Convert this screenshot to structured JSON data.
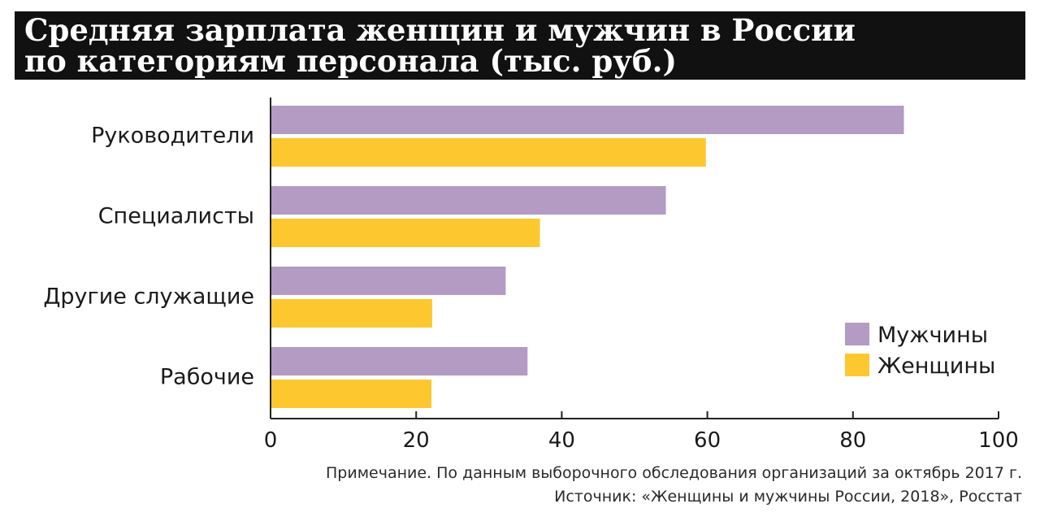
{
  "title": {
    "line1": "Средняя зарплата женщин и мужчин в России",
    "line2": "по категориям персонала (тыс. руб.)"
  },
  "notes": {
    "note": "Примечание. По данным выборочного обследования организаций за октябрь 2017 г.",
    "source": "Источник: «Женщины и мужчины России, 2018», Росстат"
  },
  "colors": {
    "men": "#b39bc3",
    "women": "#fdc82f",
    "axis": "#222222",
    "title_bg": "#111111"
  },
  "chart_data": {
    "type": "bar",
    "orientation": "horizontal",
    "categories": [
      "Руководители",
      "Специалисты",
      "Другие служащие",
      "Рабочие"
    ],
    "series": [
      {
        "name": "Мужчины",
        "values": [
          87,
          54.3,
          32.3,
          35.3
        ]
      },
      {
        "name": "Женщины",
        "values": [
          59.8,
          37,
          22.2,
          22.1
        ]
      }
    ],
    "xlim": [
      0,
      100
    ],
    "xticks": [
      0,
      20,
      40,
      60,
      80,
      100
    ],
    "legend_position": "right",
    "grid": false
  }
}
